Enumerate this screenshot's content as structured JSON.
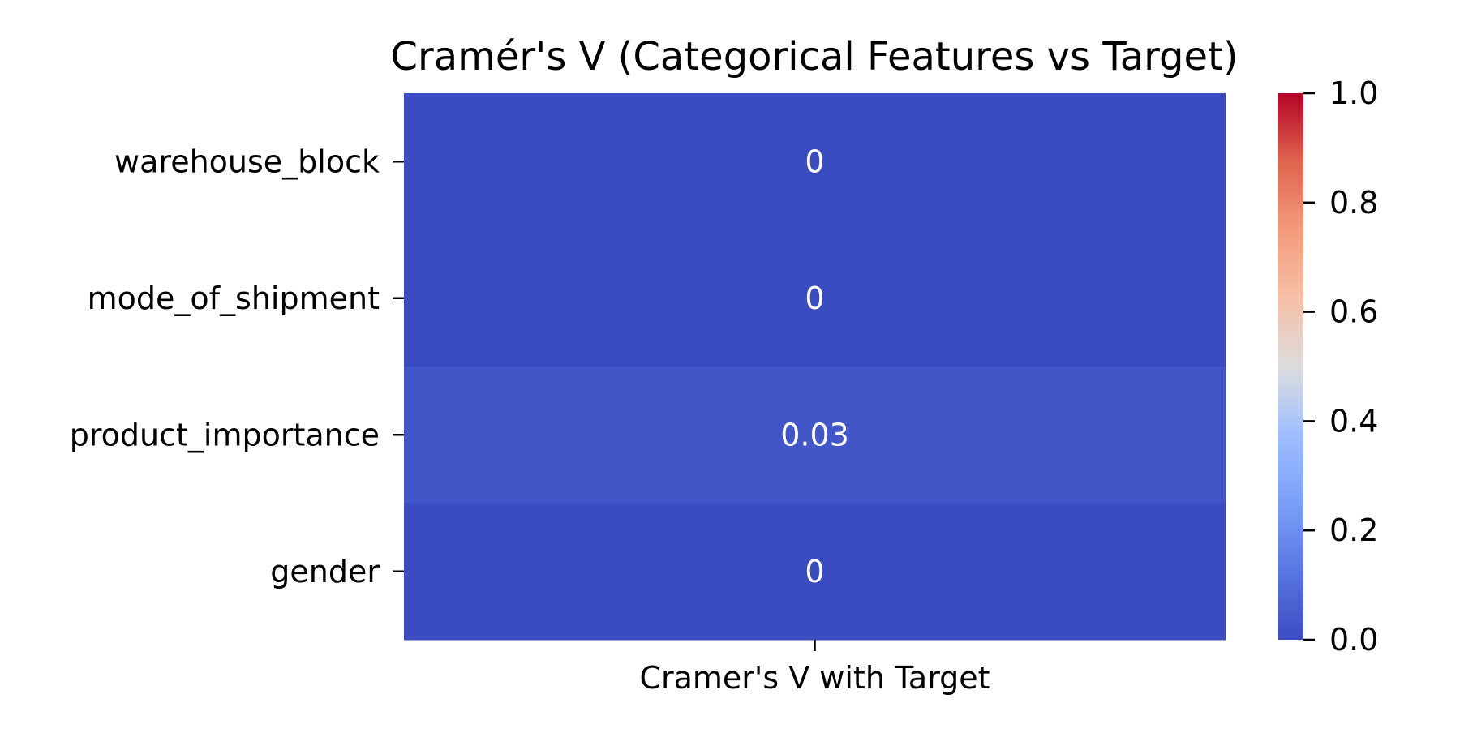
{
  "chart_data": {
    "type": "heatmap",
    "title": "Cramér's V (Categorical Features vs Target)",
    "rows": [
      "warehouse_block",
      "mode_of_shipment",
      "product_importance",
      "gender"
    ],
    "columns": [
      "Cramer's V with Target"
    ],
    "values": [
      [
        0.0
      ],
      [
        0.0
      ],
      [
        0.03
      ],
      [
        0.0
      ]
    ],
    "annotations": [
      [
        "0"
      ],
      [
        "0"
      ],
      [
        "0.03"
      ],
      [
        "0"
      ]
    ],
    "colormap": "coolwarm",
    "colorbar": {
      "range": [
        0.0,
        1.0
      ],
      "ticks": [
        0.0,
        0.2,
        0.4,
        0.6,
        0.8,
        1.0
      ],
      "tick_labels": [
        "0.0",
        "0.2",
        "0.4",
        "0.6",
        "0.8",
        "1.0"
      ],
      "position": "right"
    },
    "colors": {
      "low": "#3b4cc0",
      "mid": "#dddddd",
      "high": "#b40426"
    }
  }
}
